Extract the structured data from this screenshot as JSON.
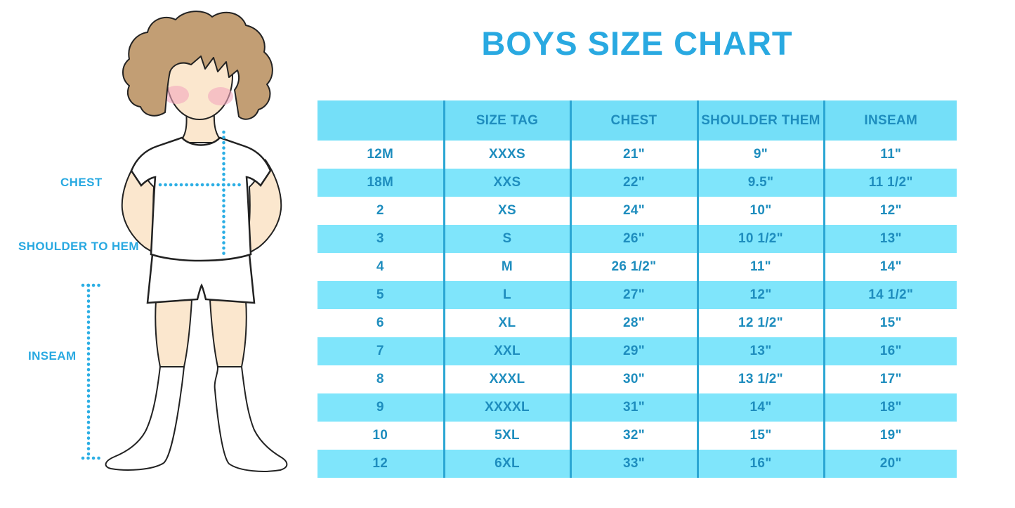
{
  "title": "BOYS SIZE CHART",
  "figure_labels": {
    "chest": "CHEST",
    "shoulder_to_hem": "SHOULDER TO HEM",
    "inseam": "INSEAM"
  },
  "chart_data": {
    "type": "table",
    "title": "BOYS SIZE CHART",
    "columns": [
      "",
      "SIZE TAG",
      "CHEST",
      "SHOULDER THEM",
      "INSEAM"
    ],
    "rows": [
      [
        "12M",
        "XXXS",
        "21\"",
        "9\"",
        "11\""
      ],
      [
        "18M",
        "XXS",
        "22\"",
        "9.5\"",
        "11 1/2\""
      ],
      [
        "2",
        "XS",
        "24\"",
        "10\"",
        "12\""
      ],
      [
        "3",
        "S",
        "26\"",
        "10 1/2\"",
        "13\""
      ],
      [
        "4",
        "M",
        "26 1/2\"",
        "11\"",
        "14\""
      ],
      [
        "5",
        "L",
        "27\"",
        "12\"",
        "14 1/2\""
      ],
      [
        "6",
        "XL",
        "28\"",
        "12 1/2\"",
        "15\""
      ],
      [
        "7",
        "XXL",
        "29\"",
        "13\"",
        "16\""
      ],
      [
        "8",
        "XXXL",
        "30\"",
        "13 1/2\"",
        "17\""
      ],
      [
        "9",
        "XXXXL",
        "31\"",
        "14\"",
        "18\""
      ],
      [
        "10",
        "5XL",
        "32\"",
        "15\"",
        "19\""
      ],
      [
        "12",
        "6XL",
        "33\"",
        "16\"",
        "20\""
      ]
    ],
    "stripe_pattern": "rows 18M,3,5,7,9,12 have light-blue background; others white",
    "legend_position": "none",
    "grid": "vertical blue dividers between columns only"
  },
  "colors": {
    "title_blue": "#29A9E1",
    "table_text_blue": "#1E8DBE",
    "header_fill": "#74DFF8",
    "stripe_fill": "#7FE5FB",
    "divider_blue": "#2BA6D3",
    "dotted_line_blue": "#2BAEE4",
    "skin": "#FBE7CE",
    "hair_brown": "#C29E74",
    "blush_pink": "#F3A8BE",
    "outline_dark": "#222222"
  }
}
